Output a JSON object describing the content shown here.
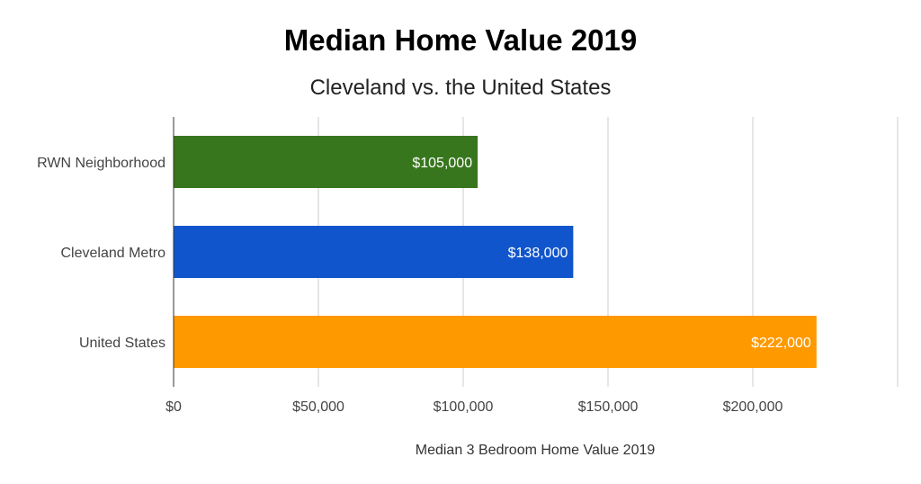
{
  "chart_data": {
    "type": "bar",
    "orientation": "horizontal",
    "title": "Median Home Value 2019",
    "subtitle": "Cleveland vs. the United States",
    "xlabel": "Median 3 Bedroom Home Value 2019",
    "ylabel": "",
    "categories": [
      "RWN Neighborhood",
      "Cleveland Metro",
      "United States"
    ],
    "values": [
      105000,
      138000,
      222000
    ],
    "data_labels": [
      "$105,000",
      "$138,000",
      "$222,000"
    ],
    "bar_colors": [
      "#38761d",
      "#1155cc",
      "#ff9900"
    ],
    "xlim": [
      0,
      250000
    ],
    "x_ticks": [
      0,
      50000,
      100000,
      150000,
      200000
    ],
    "x_tick_labels": [
      "$0",
      "$50,000",
      "$100,000",
      "$150,000",
      "$200,000"
    ],
    "grid": true,
    "legend": "none"
  }
}
